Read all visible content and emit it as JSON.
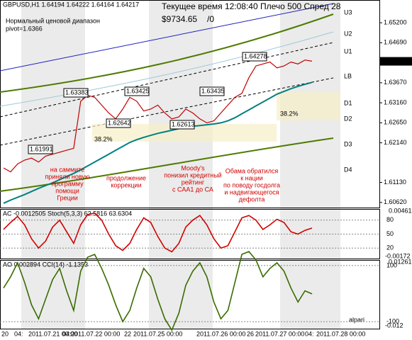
{
  "chart_data": {
    "type": "line",
    "title": "GBPUSD,H1  1.64194 1.64222 1.64164 1.64217",
    "range_label": "Нормальный ценовой диапазон",
    "pivot_label": "pivot=1.6366",
    "status": "Текущее время 12:08:40 Плечо 500 Спред 28",
    "balance": "$9734.65",
    "ratio": "/0",
    "levels": [
      "U3",
      "U2",
      "U1",
      "LB",
      "D1",
      "D2",
      "D3",
      "D4"
    ],
    "price_marks": [
      "1.63383",
      "1.63425",
      "1.63435",
      "1.64278",
      "1.62642",
      "1.62613",
      "1.61991"
    ],
    "fib": [
      "38.2%",
      "38.2%"
    ],
    "annotations": [
      [
        "на саммите",
        "приняли новую",
        "программу",
        "помощи",
        "Греции"
      ],
      [
        "продолжение",
        "коррекции"
      ],
      [
        "Moody's",
        "понизил кредитный",
        "рейтинг",
        "с САА1 до СА"
      ],
      [
        "Обама обратился",
        "к нации",
        "по поводу госдолга",
        "и надвигающегося",
        "дефолта"
      ]
    ],
    "ylim": [
      1.6049,
      1.6578
    ],
    "yticks": [
      {
        "value": 1.652,
        "label": "1.65200"
      },
      {
        "value": 1.6469,
        "label": "1.64690"
      },
      {
        "value": 1.6367,
        "label": "1.63670"
      },
      {
        "value": 1.6316,
        "label": "1.63160"
      },
      {
        "value": 1.6265,
        "label": "1.62650"
      },
      {
        "value": 1.6214,
        "label": "1.62140"
      },
      {
        "value": 1.6113,
        "label": "1.61130"
      },
      {
        "value": 1.6062,
        "label": "1.60620"
      }
    ],
    "current_price": {
      "value": 1.64217,
      "label": "1.64217"
    },
    "x_labels": [
      "20",
      "04:",
      "2011.07.21 00:00",
      "04:",
      "2011.07.22 00:00",
      "22",
      "2011.07.25 00:00",
      "2011.07.26 00:00",
      "26",
      "2011.07.27 00:00",
      "04:",
      "2011.07.28 00:00"
    ],
    "series": [
      {
        "name": "GBPUSD",
        "color": "#c00000",
        "values": [
          1.615,
          1.614,
          1.616,
          1.617,
          1.6175,
          1.6165,
          1.618,
          1.6185,
          1.619,
          1.6195,
          1.62,
          1.632,
          1.6335,
          1.633,
          1.631,
          1.629,
          1.6275,
          1.63,
          1.633,
          1.632,
          1.6295,
          1.63,
          1.631,
          1.629,
          1.6275,
          1.628,
          1.63,
          1.629,
          1.6275,
          1.6265,
          1.627,
          1.629,
          1.631,
          1.633,
          1.634,
          1.638,
          1.641,
          1.6415,
          1.642,
          1.6405,
          1.641,
          1.642,
          1.6415,
          1.6425,
          1.6422
        ]
      },
      {
        "name": "MA",
        "color": "#008080",
        "values": [
          1.606,
          1.6068,
          1.6075,
          1.6082,
          1.609,
          1.6098,
          1.6105,
          1.6112,
          1.612,
          1.6128,
          1.6136,
          1.6145,
          1.6155,
          1.6165,
          1.6175,
          1.6185,
          1.6195,
          1.6205,
          1.6215,
          1.6222,
          1.6228,
          1.6233,
          1.6238,
          1.6242,
          1.6246,
          1.625,
          1.6253,
          1.6256,
          1.6258,
          1.626,
          1.6262,
          1.6265,
          1.627,
          1.6278,
          1.6288,
          1.6298,
          1.6308,
          1.6318,
          1.6328,
          1.6338,
          1.6345,
          1.6352,
          1.6358,
          1.6363,
          1.6368
        ]
      }
    ],
    "osc1": {
      "label": "AC -0.0012505  Stoch(5,3,3) 62.5816 63.6304",
      "axis_top": "0.00461",
      "axis_bottom": "-0.00172",
      "ylim": [
        -2.5,
        102.5
      ],
      "yticks": [
        20,
        50,
        80
      ],
      "color": "#d00000",
      "values": [
        60,
        75,
        88,
        70,
        40,
        20,
        35,
        65,
        80,
        55,
        30,
        70,
        92,
        95,
        80,
        50,
        25,
        15,
        30,
        60,
        85,
        75,
        45,
        20,
        12,
        30,
        65,
        80,
        90,
        70,
        40,
        20,
        25,
        55,
        85,
        90,
        80,
        60,
        70,
        82,
        75,
        55,
        50,
        58,
        63
      ]
    },
    "osc2": {
      "label": "AO 0.002894  CCI(14) -1.1353",
      "axis_top": "0.012616",
      "axis_bottom": "-0.012",
      "ylim": [
        -125,
        117.5
      ],
      "yticks": [
        -100,
        100
      ],
      "color": "#3a6b00",
      "values": [
        20,
        60,
        110,
        40,
        -40,
        -90,
        -20,
        50,
        90,
        10,
        -60,
        80,
        130,
        140,
        90,
        30,
        -40,
        -100,
        -60,
        20,
        90,
        60,
        -20,
        -90,
        -130,
        -70,
        30,
        80,
        110,
        60,
        -30,
        -90,
        -60,
        40,
        140,
        150,
        120,
        60,
        90,
        110,
        80,
        20,
        -30,
        10,
        -1
      ]
    },
    "brand": "alpari"
  }
}
